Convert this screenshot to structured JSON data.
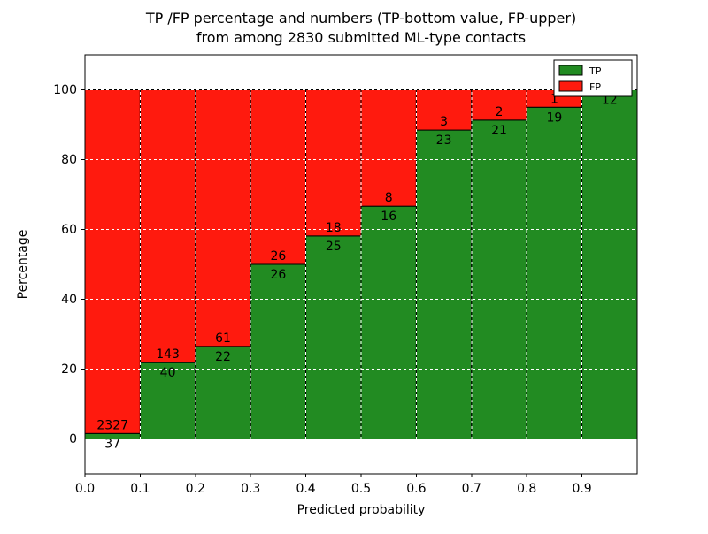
{
  "chart_data": {
    "type": "bar",
    "stacked": true,
    "title_lines": [
      "TP /FP percentage and numbers (TP-bottom value, FP-upper)",
      "from among 2830 submitted ML-type contacts"
    ],
    "xlabel": "Predicted probability",
    "ylabel": "Percentage",
    "xlim": [
      0.0,
      1.0
    ],
    "ylim": [
      -10,
      110
    ],
    "xticks": {
      "values": [
        0.0,
        0.1,
        0.2,
        0.3,
        0.4,
        0.5,
        0.6,
        0.7,
        0.8,
        0.9
      ],
      "labels": [
        "0.0",
        "0.1",
        "0.2",
        "0.3",
        "0.4",
        "0.5",
        "0.6",
        "0.7",
        "0.8",
        "0.9"
      ]
    },
    "yticks": {
      "values": [
        0,
        20,
        40,
        60,
        80,
        100
      ],
      "labels": [
        "0",
        "20",
        "40",
        "60",
        "80",
        "100"
      ]
    },
    "grid": {
      "visible": true,
      "color": "#ffffff",
      "style": "dashed"
    },
    "total_contacts": 2830,
    "bin_width": 0.1,
    "bins": [
      {
        "x0": 0.0,
        "x1": 0.1,
        "tp": 37,
        "fp": 2327
      },
      {
        "x0": 0.1,
        "x1": 0.2,
        "tp": 40,
        "fp": 143
      },
      {
        "x0": 0.2,
        "x1": 0.3,
        "tp": 22,
        "fp": 61
      },
      {
        "x0": 0.3,
        "x1": 0.4,
        "tp": 26,
        "fp": 26
      },
      {
        "x0": 0.4,
        "x1": 0.5,
        "tp": 25,
        "fp": 18
      },
      {
        "x0": 0.5,
        "x1": 0.6,
        "tp": 16,
        "fp": 8
      },
      {
        "x0": 0.6,
        "x1": 0.7,
        "tp": 23,
        "fp": 3
      },
      {
        "x0": 0.7,
        "x1": 0.8,
        "tp": 21,
        "fp": 2
      },
      {
        "x0": 0.8,
        "x1": 0.9,
        "tp": 19,
        "fp": 1
      },
      {
        "x0": 0.9,
        "x1": 1.0,
        "tp": 12,
        "fp": 0
      }
    ],
    "tp_percent_heights": [
      1.6,
      21.9,
      26.5,
      50.0,
      58.1,
      66.7,
      88.5,
      91.3,
      95.0,
      100.0
    ],
    "bar_value_note": "bar heights are percentages tp/(tp+fp)*100; labels show raw counts (TP below boundary, FP above)",
    "series": [
      {
        "name": "TP",
        "color": "#228b22"
      },
      {
        "name": "FP",
        "color": "#ff1a0e"
      }
    ],
    "legend": {
      "position": "upper right",
      "items": [
        {
          "label": "TP",
          "color": "#228b22"
        },
        {
          "label": "FP",
          "color": "#ff1a0e"
        }
      ]
    }
  }
}
